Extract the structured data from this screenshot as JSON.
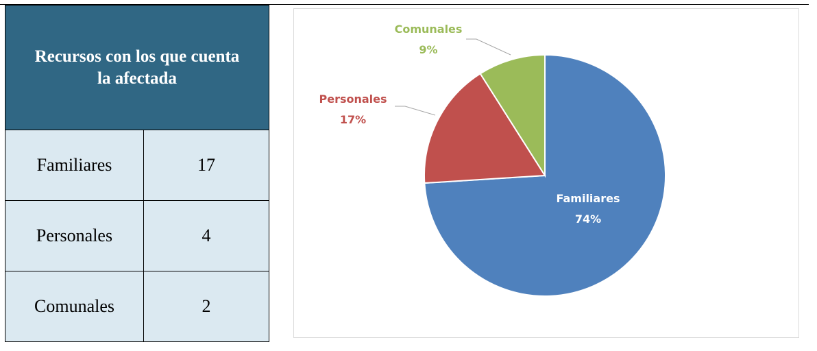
{
  "table": {
    "title": "Recursos con los que cuenta la afectada",
    "rows": [
      [
        "Familiares",
        "17"
      ],
      [
        "Personales",
        "4"
      ],
      [
        "Comunales",
        "2"
      ]
    ]
  },
  "chart_data": {
    "type": "pie",
    "categories": [
      "Familiares",
      "Personales",
      "Comunales"
    ],
    "values": [
      74,
      17,
      9
    ],
    "value_labels": [
      "74%",
      "17%",
      "9%"
    ],
    "colors": [
      "#4f81bd",
      "#c0504d",
      "#9bbb59"
    ]
  }
}
